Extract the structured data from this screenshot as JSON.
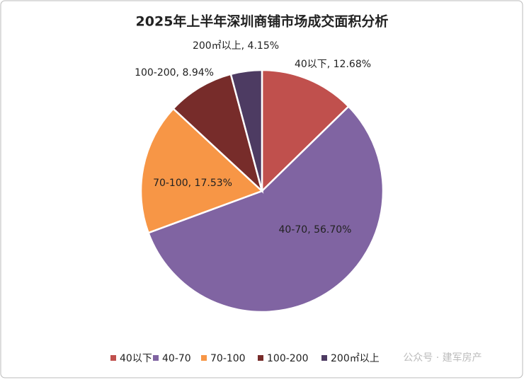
{
  "chart_data": {
    "type": "pie",
    "title": "2025年上半年深圳商铺市场成交面积分析",
    "categories": [
      "40以下",
      "40-70",
      "70-100",
      "100-200",
      "200㎡以上"
    ],
    "values": [
      12.68,
      56.7,
      17.53,
      8.94,
      4.15
    ],
    "value_labels": [
      "40以下, 12.68%",
      "40-70, 56.70%",
      "70-100, 17.53%",
      "100-200, 8.94%",
      "200㎡以上, 4.15%"
    ],
    "colors": [
      "#c0504d",
      "#8064a2",
      "#f79646",
      "#772c2a",
      "#4d3b62"
    ],
    "legend": "bottom"
  },
  "watermark": "公众号 · 建军房产"
}
